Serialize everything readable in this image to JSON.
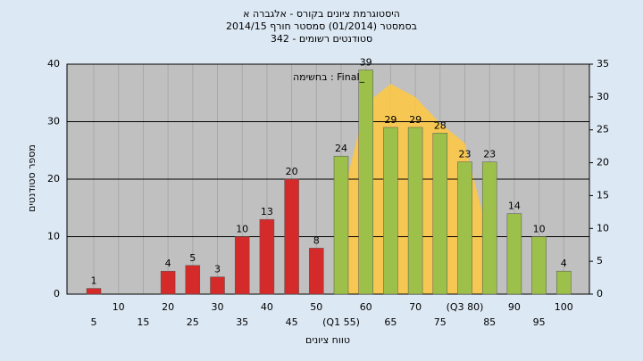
{
  "chart_data": {
    "type": "bar",
    "title": [
      "היסטוגרמת ציונים בקורס - אלגברה א",
      "בסמסטר  (01/2014)  סמסטר חורף 2014/15",
      "סטודנטים רשומים - 342"
    ],
    "annotation": "בחשימה : Final_",
    "ylabel": "מספר סטודנטים",
    "xlabel": "טווח ציונים",
    "categories": [
      "5",
      "10",
      "15",
      "20",
      "25",
      "30",
      "35",
      "40",
      "45",
      "50",
      "(Q1 55)",
      "60",
      "65",
      "70",
      "75",
      "(Q3 80)",
      "85",
      "90",
      "95",
      "100"
    ],
    "values": [
      1,
      0,
      0,
      4,
      5,
      3,
      10,
      13,
      20,
      8,
      24,
      39,
      29,
      29,
      28,
      23,
      23,
      14,
      10,
      4
    ],
    "colors": [
      "#d42a2a",
      "#d42a2a",
      "#d42a2a",
      "#d42a2a",
      "#d42a2a",
      "#d42a2a",
      "#d42a2a",
      "#d42a2a",
      "#d42a2a",
      "#d42a2a",
      "#9cc04a",
      "#9cc04a",
      "#9cc04a",
      "#9cc04a",
      "#9cc04a",
      "#9cc04a",
      "#9cc04a",
      "#9cc04a",
      "#9cc04a",
      "#9cc04a"
    ],
    "curve": {
      "axis": "y2",
      "color": "#ffc840",
      "values": [
        null,
        null,
        null,
        null,
        null,
        null,
        null,
        null,
        null,
        null,
        14,
        29,
        32,
        30,
        26,
        23,
        8,
        null,
        null,
        null
      ]
    },
    "ylim": [
      0,
      40
    ],
    "yticks": [
      0,
      10,
      20,
      30,
      40
    ],
    "y2lim": [
      0,
      35
    ],
    "y2ticks": [
      0,
      5,
      10,
      15,
      20,
      25,
      30,
      35
    ],
    "grid": true
  }
}
